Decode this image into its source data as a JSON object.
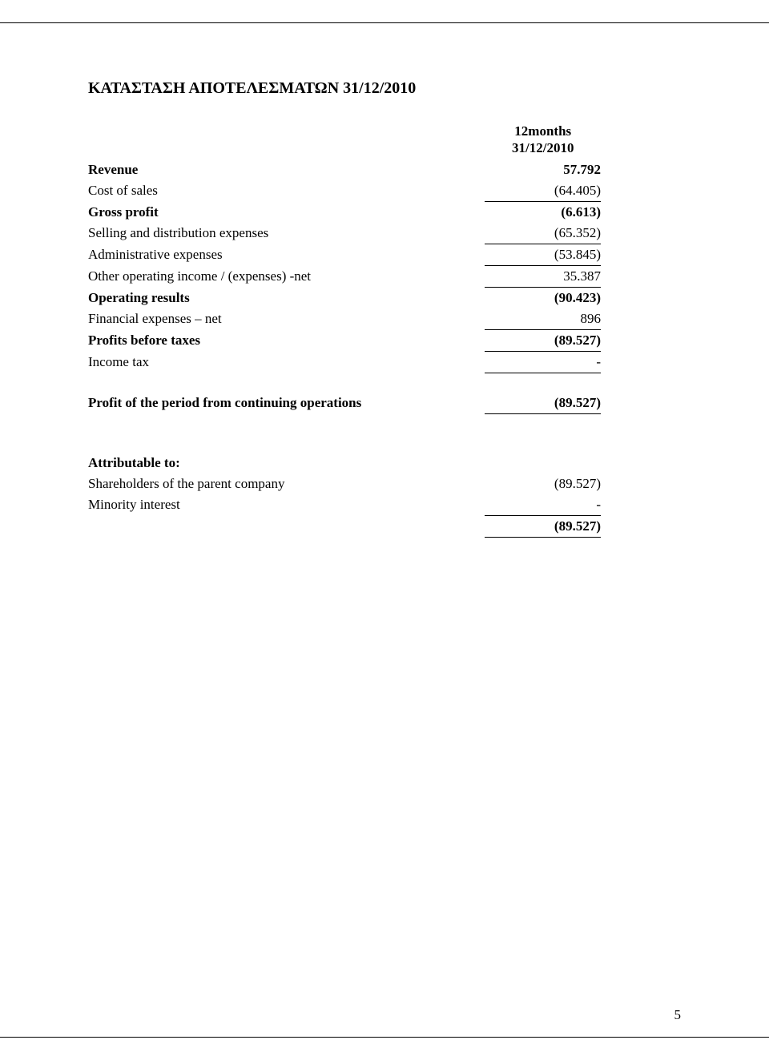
{
  "title": "ΚΑΤΑΣΤΑΣΗ ΑΠΟΤΕΛΕΣΜΑΤΩΝ 31/12/2010",
  "period_header_line1": "12months",
  "period_header_line2": "31/12/2010",
  "rows": {
    "revenue_label": "Revenue",
    "revenue_value": "57.792",
    "cost_of_sales_label": "Cost of sales",
    "cost_of_sales_value": "(64.405)",
    "gross_profit_label": "Gross profit",
    "gross_profit_value": "(6.613)",
    "selling_dist_label": "Selling and distribution expenses",
    "selling_dist_value": "(65.352)",
    "admin_exp_label": "Administrative expenses",
    "admin_exp_value": "(53.845)",
    "other_op_label": "Other operating income / (expenses) -net",
    "other_op_value": "35.387",
    "operating_results_label": "Operating results",
    "operating_results_value": "(90.423)",
    "fin_exp_label": "Financial expenses – net",
    "fin_exp_value": "896",
    "profits_before_tax_label": "Profits before taxes",
    "profits_before_tax_value": "(89.527)",
    "income_tax_label": "Income tax",
    "income_tax_value": "-",
    "profit_period_label": "Profit of the period from continuing operations",
    "profit_period_value": "(89.527)",
    "attributable_label": "Attributable to:",
    "shareholders_label": "Shareholders of the parent company",
    "shareholders_value": "(89.527)",
    "minority_label": "Minority interest",
    "minority_value": "-",
    "total_value": "(89.527)"
  },
  "page_number": "5"
}
